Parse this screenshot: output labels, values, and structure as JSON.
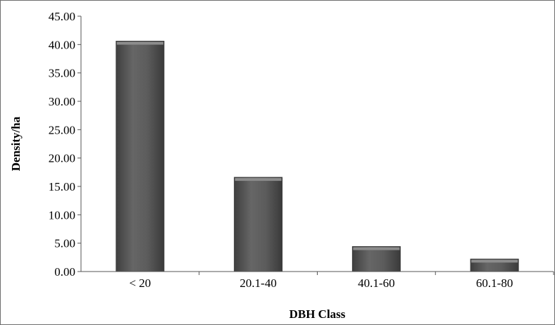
{
  "chart_data": {
    "type": "bar",
    "categories": [
      "< 20",
      "20.1-40",
      "40.1-60",
      "60.1-80"
    ],
    "values": [
      40.6,
      16.6,
      4.4,
      2.2
    ],
    "title": "",
    "xlabel": "DBH Class",
    "ylabel": "Density/ha",
    "ylim": [
      0,
      45
    ],
    "yticks": [
      "0.00",
      "5.00",
      "10.00",
      "15.00",
      "20.00",
      "25.00",
      "30.00",
      "35.00",
      "40.00",
      "45.00"
    ],
    "grid": false,
    "legend": "none",
    "bar_color": "#5a5a5a",
    "bar_highlight_color": "#8c8c8c",
    "axis_color": "#555555"
  }
}
